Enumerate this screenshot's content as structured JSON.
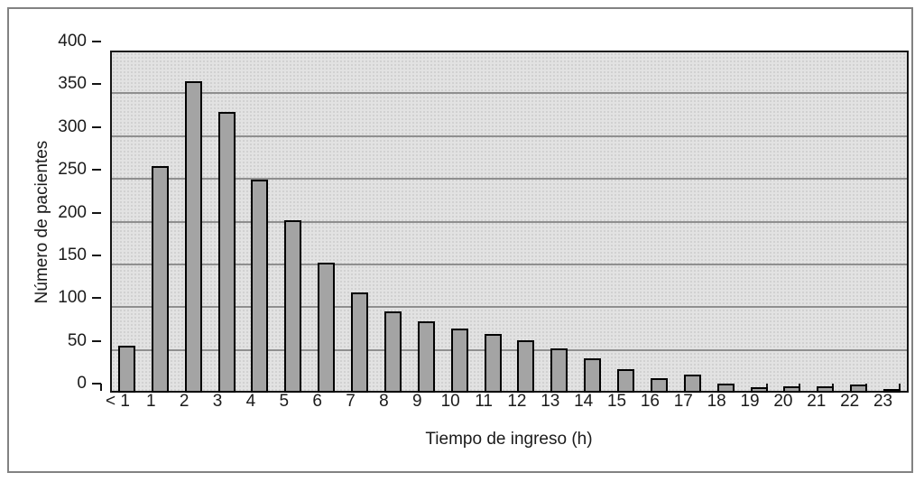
{
  "figure": {
    "frame_border_color": "#828282",
    "background_color": "#ffffff"
  },
  "chart_data": {
    "type": "bar",
    "title": "",
    "xlabel": "Tiempo de ingreso (h)",
    "ylabel": "Número de pacientes",
    "categories": [
      "< 1",
      "1",
      "2",
      "3",
      "4",
      "5",
      "6",
      "7",
      "8",
      "9",
      "10",
      "11",
      "12",
      "13",
      "14",
      "15",
      "16",
      "17",
      "18",
      "19",
      "20",
      "21",
      "22",
      "23"
    ],
    "values": [
      55,
      265,
      364,
      328,
      249,
      202,
      152,
      117,
      95,
      83,
      75,
      69,
      61,
      52,
      40,
      27,
      17,
      21,
      11,
      6,
      7,
      7,
      9,
      4
    ],
    "ylim": [
      0,
      400
    ],
    "yticks": [
      0,
      50,
      100,
      150,
      200,
      250,
      300,
      350,
      400
    ],
    "grid": true,
    "legend": "none",
    "bar_fill_color": "#a4a4a4",
    "bar_border_color": "#000000",
    "plot_background_color": "#e2e2e2",
    "gridline_color": "#8f8f8f"
  }
}
